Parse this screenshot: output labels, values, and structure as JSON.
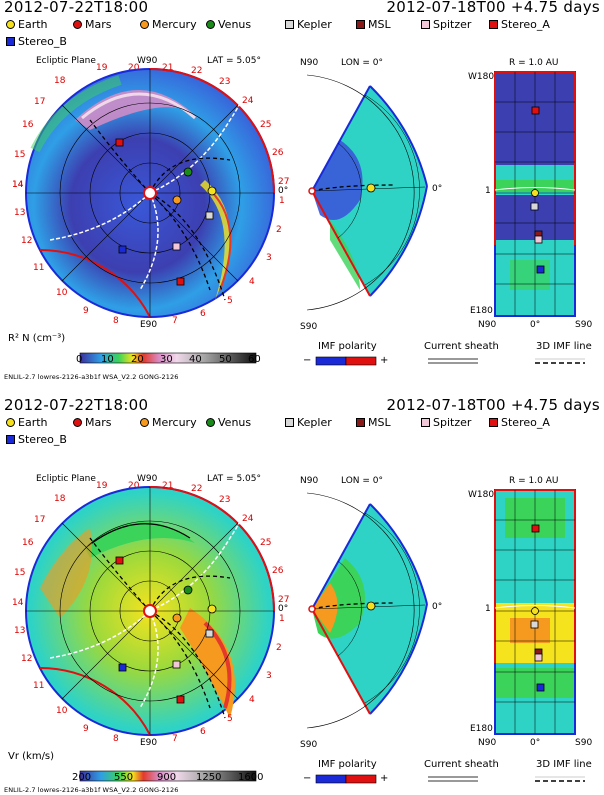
{
  "panels": [
    {
      "id": "density",
      "title_left": "2012-07-22T18:00",
      "title_right": "2012-07-18T00 +4.75 days",
      "colorbar": {
        "label": "R² N (cm⁻³)",
        "ticks": [
          "0",
          "10",
          "20",
          "30",
          "40",
          "50",
          "60"
        ],
        "colors": [
          "#3c2f9e",
          "#3a58d8",
          "#2f9fe6",
          "#2ed3c6",
          "#3bd35a",
          "#9bd93c",
          "#f5e31e",
          "#f59a1e",
          "#e33a2c",
          "#d88cc6",
          "#f0d8ea",
          "#d8d8d8",
          "#a8a8a8",
          "#707070",
          "#3a3a3a",
          "#111111"
        ]
      },
      "footer": "ENLIL-2.7 lowres-2126-a3b1f WSA_V2.2 GONG-2126"
    },
    {
      "id": "velocity",
      "title_left": "2012-07-22T18:00",
      "title_right": "2012-07-18T00 +4.75 days",
      "colorbar": {
        "label": "Vr (km/s)",
        "ticks": [
          "200",
          "550",
          "900",
          "1250",
          "1600"
        ],
        "colors": [
          "#3c2f9e",
          "#3a58d8",
          "#2f9fe6",
          "#2ed3c6",
          "#3bd35a",
          "#9bd93c",
          "#f5e31e",
          "#f59a1e",
          "#e33a2c",
          "#d88cc6",
          "#f0d8ea",
          "#d8d8d8",
          "#a8a8a8",
          "#707070",
          "#3a3a3a",
          "#111111"
        ]
      },
      "footer": "ENLIL-2.7 lowres-2126-a3b1f WSA_V2.2 GONG-2126"
    }
  ],
  "legend": [
    {
      "name": "Earth",
      "color": "#f5e020",
      "shape": "round"
    },
    {
      "name": "Mars",
      "color": "#e01010",
      "shape": "round"
    },
    {
      "name": "Mercury",
      "color": "#f59a1e",
      "shape": "round"
    },
    {
      "name": "Venus",
      "color": "#1a8a1a",
      "shape": "round"
    },
    {
      "name": "Kepler",
      "color": "#d8d8d8",
      "shape": "square"
    },
    {
      "name": "MSL",
      "color": "#8a1a1a",
      "shape": "square"
    },
    {
      "name": "Spitzer",
      "color": "#f2c8d8",
      "shape": "square"
    },
    {
      "name": "Stereo_A",
      "color": "#e01010",
      "shape": "square"
    },
    {
      "name": "Stereo_B",
      "color": "#1a2ad8",
      "shape": "square"
    }
  ],
  "ecliptic": {
    "label": "Ecliptic Plane",
    "lat": "LAT = 5.05°",
    "top": "W90",
    "bottom": "E90",
    "left": "14",
    "right": "0°",
    "numbers": [
      "20",
      "21",
      "22",
      "23",
      "24",
      "25",
      "26",
      "27",
      "1",
      "2",
      "3",
      "4",
      "5",
      "6",
      "7",
      "8",
      "9",
      "10",
      "11",
      "12",
      "13",
      "14",
      "15",
      "16",
      "17",
      "18",
      "19"
    ]
  },
  "meridional": {
    "top": "N90",
    "lon": "LON = 0°",
    "bottom": "S90",
    "right": "0°"
  },
  "map": {
    "title": "R = 1.0 AU",
    "top_left": "W180",
    "bottom_left": "E180",
    "mid_left": "1",
    "bottom_labels": [
      "N90",
      "0°",
      "S90"
    ]
  },
  "imf": {
    "label": "IMF polarity",
    "minus": "−",
    "plus": "+",
    "sheath": "Current sheath",
    "line": "3D IMF line"
  }
}
